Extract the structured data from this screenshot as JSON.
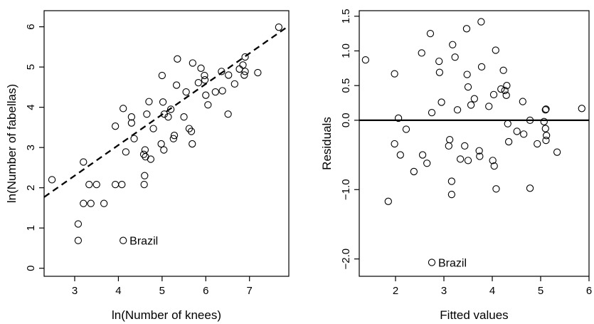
{
  "chart_data": [
    {
      "type": "scatter",
      "xlabel": "ln(Number of knees)",
      "ylabel": "ln(Number of fabellas)",
      "xlim": [
        2.3,
        7.9
      ],
      "ylim": [
        -0.2,
        6.4
      ],
      "xticks": [
        "3",
        "4",
        "5",
        "6",
        "7"
      ],
      "yticks": [
        "0",
        "1",
        "2",
        "3",
        "4",
        "5",
        "6"
      ],
      "grid": false,
      "box": true,
      "points": [
        [
          2.48,
          2.2
        ],
        [
          3.08,
          1.1
        ],
        [
          3.08,
          0.69
        ],
        [
          3.2,
          2.64
        ],
        [
          3.2,
          1.61
        ],
        [
          3.33,
          2.08
        ],
        [
          3.37,
          1.61
        ],
        [
          3.5,
          2.08
        ],
        [
          3.67,
          1.61
        ],
        [
          3.93,
          2.08
        ],
        [
          3.93,
          3.53
        ],
        [
          4.08,
          2.08
        ],
        [
          4.11,
          3.97
        ],
        [
          4.17,
          2.89
        ],
        [
          4.3,
          3.76
        ],
        [
          4.3,
          3.61
        ],
        [
          4.36,
          3.22
        ],
        [
          4.58,
          2.83
        ],
        [
          4.59,
          2.08
        ],
        [
          4.6,
          2.3
        ],
        [
          4.62,
          2.77
        ],
        [
          4.61,
          2.94
        ],
        [
          4.65,
          3.83
        ],
        [
          4.7,
          4.14
        ],
        [
          4.74,
          2.71
        ],
        [
          4.8,
          3.47
        ],
        [
          4.98,
          3.09
        ],
        [
          5.0,
          4.79
        ],
        [
          5.02,
          4.13
        ],
        [
          5.04,
          2.94
        ],
        [
          5.05,
          3.83
        ],
        [
          5.14,
          3.76
        ],
        [
          5.2,
          3.95
        ],
        [
          5.26,
          3.22
        ],
        [
          5.28,
          3.3
        ],
        [
          5.33,
          4.55
        ],
        [
          5.35,
          5.2
        ],
        [
          5.5,
          3.76
        ],
        [
          5.55,
          4.38
        ],
        [
          5.62,
          3.47
        ],
        [
          5.67,
          3.4
        ],
        [
          5.69,
          3.09
        ],
        [
          5.7,
          5.1
        ],
        [
          5.83,
          4.61
        ],
        [
          5.89,
          4.97
        ],
        [
          5.97,
          4.79
        ],
        [
          5.98,
          4.68
        ],
        [
          6.0,
          4.3
        ],
        [
          6.05,
          4.06
        ],
        [
          6.22,
          4.38
        ],
        [
          6.36,
          4.89
        ],
        [
          6.38,
          4.41
        ],
        [
          6.51,
          3.83
        ],
        [
          6.52,
          4.8
        ],
        [
          6.66,
          4.58
        ],
        [
          6.77,
          4.95
        ],
        [
          6.85,
          5.05
        ],
        [
          6.9,
          5.25
        ],
        [
          6.88,
          4.8
        ],
        [
          6.9,
          4.89
        ],
        [
          7.19,
          4.86
        ],
        [
          7.67,
          5.99
        ]
      ],
      "fit_line": {
        "intercept": 0.02,
        "slope": 0.76
      },
      "annotations": [
        {
          "text": "Brazil",
          "x": 4.11,
          "y": 0.69
        }
      ]
    },
    {
      "type": "scatter",
      "xlabel": "Fitted values",
      "ylabel": "Residuals",
      "xlim": [
        1.25,
        6.0
      ],
      "ylim": [
        -2.25,
        1.58
      ],
      "xticks": [
        "2",
        "3",
        "4",
        "5",
        "6"
      ],
      "yticks": [
        "−2.0",
        "−1.0",
        "0.0",
        "0.5",
        "1.0",
        "1.5"
      ],
      "ytick_values": [
        -2.0,
        -1.0,
        0.0,
        0.5,
        1.0,
        1.5
      ],
      "grid": false,
      "box": true,
      "hline": 0,
      "points": [
        [
          1.38,
          0.87
        ],
        [
          1.85,
          -1.17
        ],
        [
          1.98,
          0.67
        ],
        [
          1.98,
          -0.34
        ],
        [
          2.06,
          0.03
        ],
        [
          2.1,
          -0.5
        ],
        [
          2.22,
          -0.13
        ],
        [
          2.38,
          -0.74
        ],
        [
          2.54,
          0.97
        ],
        [
          2.56,
          -0.5
        ],
        [
          2.65,
          -0.62
        ],
        [
          2.72,
          1.25
        ],
        [
          2.75,
          0.11
        ],
        [
          2.9,
          0.85
        ],
        [
          2.91,
          0.69
        ],
        [
          2.95,
          0.26
        ],
        [
          3.1,
          -0.37
        ],
        [
          3.12,
          -0.28
        ],
        [
          3.16,
          -1.07
        ],
        [
          3.16,
          -0.88
        ],
        [
          3.18,
          1.09
        ],
        [
          3.23,
          0.91
        ],
        [
          3.28,
          0.15
        ],
        [
          3.34,
          -0.56
        ],
        [
          3.43,
          -0.37
        ],
        [
          3.47,
          1.32
        ],
        [
          3.48,
          0.66
        ],
        [
          3.5,
          0.48
        ],
        [
          3.5,
          -0.58
        ],
        [
          3.56,
          0.22
        ],
        [
          3.63,
          0.31
        ],
        [
          3.73,
          -0.44
        ],
        [
          3.74,
          -0.52
        ],
        [
          3.77,
          1.42
        ],
        [
          3.78,
          0.77
        ],
        [
          3.93,
          0.2
        ],
        [
          4.01,
          -0.58
        ],
        [
          4.03,
          0.37
        ],
        [
          4.04,
          -0.66
        ],
        [
          4.07,
          1.01
        ],
        [
          4.08,
          -0.99
        ],
        [
          4.18,
          0.45
        ],
        [
          4.23,
          0.72
        ],
        [
          4.26,
          0.43
        ],
        [
          4.29,
          0.36
        ],
        [
          4.3,
          0.5
        ],
        [
          4.32,
          -0.05
        ],
        [
          4.34,
          -0.31
        ],
        [
          4.51,
          -0.16
        ],
        [
          4.63,
          0.27
        ],
        [
          4.65,
          -0.2
        ],
        [
          4.78,
          -0.98
        ],
        [
          4.78,
          0.0
        ],
        [
          4.93,
          -0.34
        ],
        [
          5.07,
          -0.02
        ],
        [
          5.1,
          -0.12
        ],
        [
          5.1,
          0.15
        ],
        [
          5.12,
          -0.22
        ],
        [
          5.11,
          -0.29
        ],
        [
          5.11,
          0.16
        ],
        [
          5.34,
          -0.46
        ],
        [
          5.85,
          0.17
        ]
      ],
      "annotations": [
        {
          "text": "Brazil",
          "x": 2.75,
          "y": -2.05
        }
      ]
    }
  ]
}
